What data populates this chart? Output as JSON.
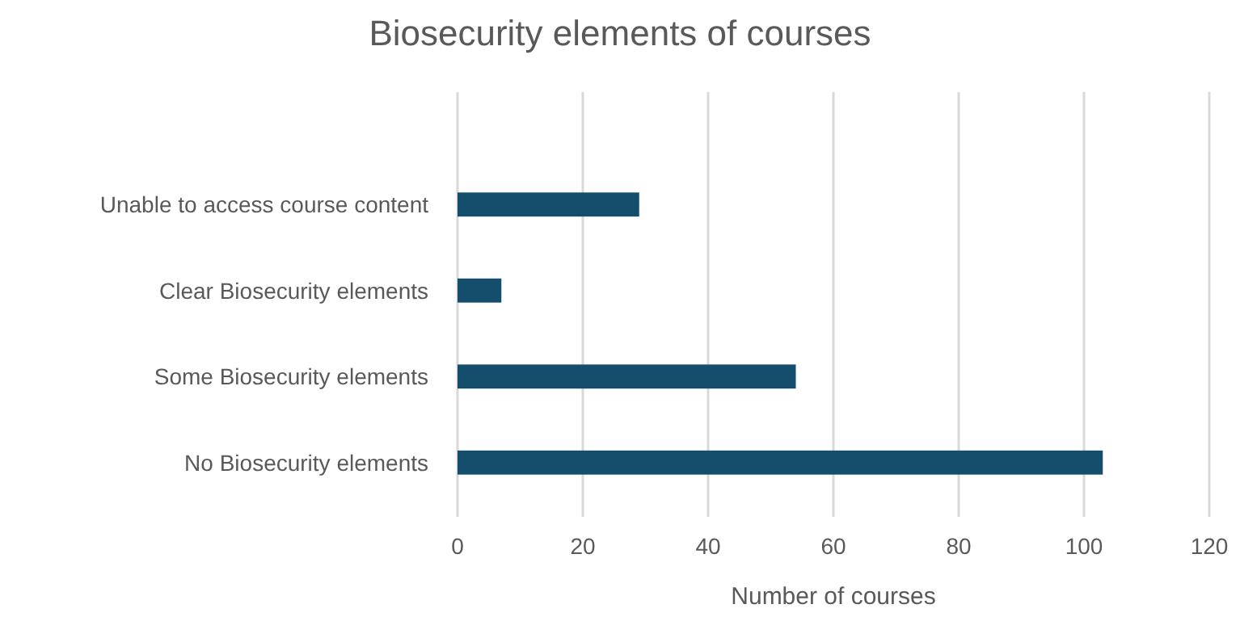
{
  "chart_data": {
    "type": "bar",
    "orientation": "horizontal",
    "title": "Biosecurity elements of courses",
    "xlabel": "Number of courses",
    "categories": [
      "Unable to access course content",
      "Clear Biosecurity elements",
      "Some Biosecurity elements",
      "No Biosecurity elements"
    ],
    "values": [
      29,
      7,
      54,
      103
    ],
    "color": "#144e6c",
    "xlim": [
      0,
      120
    ],
    "xticks": [
      0,
      20,
      40,
      60,
      80,
      100,
      120
    ],
    "grid": "x"
  }
}
